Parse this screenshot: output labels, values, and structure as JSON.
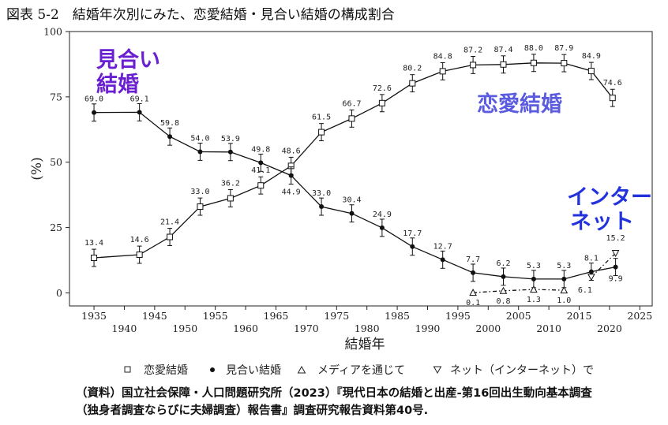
{
  "title": "図表 5-2　結婚年次別にみた、恋愛結婚・見合い結婚の構成割合",
  "annotations": {
    "miai_line1": "見合い",
    "miai_line2": "結婚",
    "renai": "恋愛結婚",
    "net_line1": "インター",
    "net_line2": "ネット"
  },
  "colors": {
    "miai": "#6a1fd1",
    "renai": "#5b5be0",
    "net": "#2233dd"
  },
  "legend": {
    "renai": "恋愛結婚",
    "miai": "見合い結婚",
    "media": "メディアを通じて",
    "net": "ネット（インターネット）で"
  },
  "source": {
    "line1": "（資料）国立社会保障・人口問題研究所（2023）『現代日本の結婚と出産-第16回出生動向基本調査",
    "line2": "（独身者調査ならびに夫婦調査）報告書』調査研究報告資料第40号."
  },
  "chart_data": {
    "type": "line",
    "title": "",
    "xlabel": "結婚年",
    "ylabel": "(%)",
    "xlim": [
      1932,
      2026
    ],
    "ylim": [
      -5,
      100
    ],
    "grid": false,
    "legend_position": "bottom",
    "yticks": [
      0,
      25,
      50,
      75,
      100
    ],
    "xticks_upper": [
      1935,
      1945,
      1955,
      1965,
      1975,
      1985,
      1995,
      2005,
      2015,
      2025
    ],
    "xticks_lower": [
      1940,
      1950,
      1960,
      1970,
      1980,
      1990,
      2000,
      2010,
      2020
    ],
    "series": [
      {
        "name": "恋愛結婚",
        "marker": "square",
        "linestyle": "solid",
        "x": [
          1935,
          1942.5,
          1947.5,
          1952.5,
          1957.5,
          1962.5,
          1967.5,
          1972.5,
          1977.5,
          1982.5,
          1987.5,
          1992.5,
          1997.5,
          2002.5,
          2007.5,
          2012.5,
          2017,
          2020.5
        ],
        "y": [
          13.4,
          14.6,
          21.4,
          33.0,
          36.2,
          41.1,
          48.6,
          61.5,
          66.7,
          72.6,
          80.2,
          84.8,
          87.2,
          87.4,
          88.0,
          87.9,
          84.9,
          74.6
        ],
        "labels": [
          "13.4",
          "14.6",
          "21.4",
          "33.0",
          "36.2",
          "41.1",
          "48.6",
          "61.5",
          "66.7",
          "72.6",
          "80.2",
          "84.8",
          "87.2",
          "87.4",
          "88.0",
          "87.9",
          "84.9",
          "74.6"
        ]
      },
      {
        "name": "見合い結婚",
        "marker": "circle",
        "linestyle": "solid",
        "x": [
          1935,
          1942.5,
          1947.5,
          1952.5,
          1957.5,
          1962.5,
          1967.5,
          1972.5,
          1977.5,
          1982.5,
          1987.5,
          1992.5,
          1997.5,
          2002.5,
          2007.5,
          2012.5,
          2017,
          2021
        ],
        "y": [
          69.0,
          69.1,
          59.8,
          54.0,
          53.9,
          49.8,
          44.9,
          33.0,
          30.4,
          24.9,
          17.7,
          12.7,
          7.7,
          6.2,
          5.3,
          5.3,
          8.1,
          9.9
        ],
        "labels": [
          "69.0",
          "69.1",
          "59.8",
          "54.0",
          "53.9",
          "49.8",
          "44.9",
          "33.0",
          "30.4",
          "24.9",
          "17.7",
          "12.7",
          "7.7",
          "6.2",
          "5.3",
          "5.3",
          "8.1",
          "9.9"
        ]
      },
      {
        "name": "メディアを通じて",
        "marker": "triangle-up",
        "linestyle": "dashdot",
        "x": [
          1997.5,
          2002.5,
          2007.5,
          2012.5
        ],
        "y": [
          0.1,
          0.8,
          1.3,
          1.0
        ],
        "labels": [
          "0.1",
          "0.8",
          "1.3",
          "1.0"
        ]
      },
      {
        "name": "ネット（インターネット）で",
        "marker": "triangle-down",
        "linestyle": "dashdot",
        "x": [
          2017,
          2021
        ],
        "y": [
          6.1,
          15.2
        ],
        "labels": [
          "6.1",
          "15.2"
        ]
      }
    ]
  }
}
